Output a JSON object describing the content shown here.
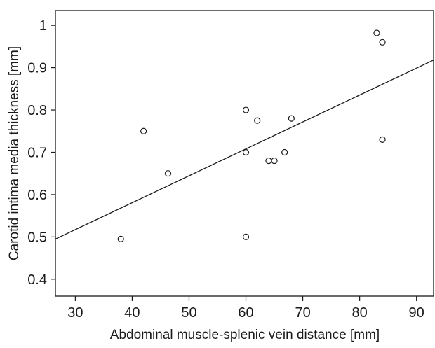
{
  "chart_data": {
    "type": "scatter",
    "title": "",
    "xlabel": "Abdominal muscle-splenic vein distance [mm]",
    "ylabel": "Carotid intima media thickness [mm]",
    "xlim": [
      26.5,
      93
    ],
    "ylim": [
      0.36,
      1.035
    ],
    "x_ticks": [
      30,
      40,
      50,
      60,
      70,
      80,
      90
    ],
    "y_ticks": [
      0.4,
      0.5,
      0.6,
      0.7,
      0.8,
      0.9,
      1
    ],
    "x_tick_labels": [
      "30",
      "40",
      "50",
      "60",
      "70",
      "80",
      "90"
    ],
    "y_tick_labels": [
      "0.4",
      "0.5",
      "0.6",
      "0.7",
      "0.8",
      "0.9",
      "1"
    ],
    "grid": false,
    "legend": "none",
    "marker": "open-circle",
    "colors": {
      "marker_edge": "#1a1a1a",
      "line": "#1a1a1a",
      "axes": "#1a1a1a"
    },
    "points": [
      {
        "x": 38,
        "y": 0.495
      },
      {
        "x": 42,
        "y": 0.75
      },
      {
        "x": 46.3,
        "y": 0.65
      },
      {
        "x": 60,
        "y": 0.8
      },
      {
        "x": 60,
        "y": 0.7
      },
      {
        "x": 60,
        "y": 0.5
      },
      {
        "x": 62,
        "y": 0.775
      },
      {
        "x": 64,
        "y": 0.68
      },
      {
        "x": 65,
        "y": 0.68
      },
      {
        "x": 66.8,
        "y": 0.7
      },
      {
        "x": 68,
        "y": 0.78
      },
      {
        "x": 83,
        "y": 0.982
      },
      {
        "x": 84,
        "y": 0.96
      },
      {
        "x": 84,
        "y": 0.73
      }
    ],
    "fit_line": {
      "type": "linear",
      "from": {
        "x": 26.5,
        "y": 0.495
      },
      "to": {
        "x": 93,
        "y": 0.918
      }
    }
  }
}
